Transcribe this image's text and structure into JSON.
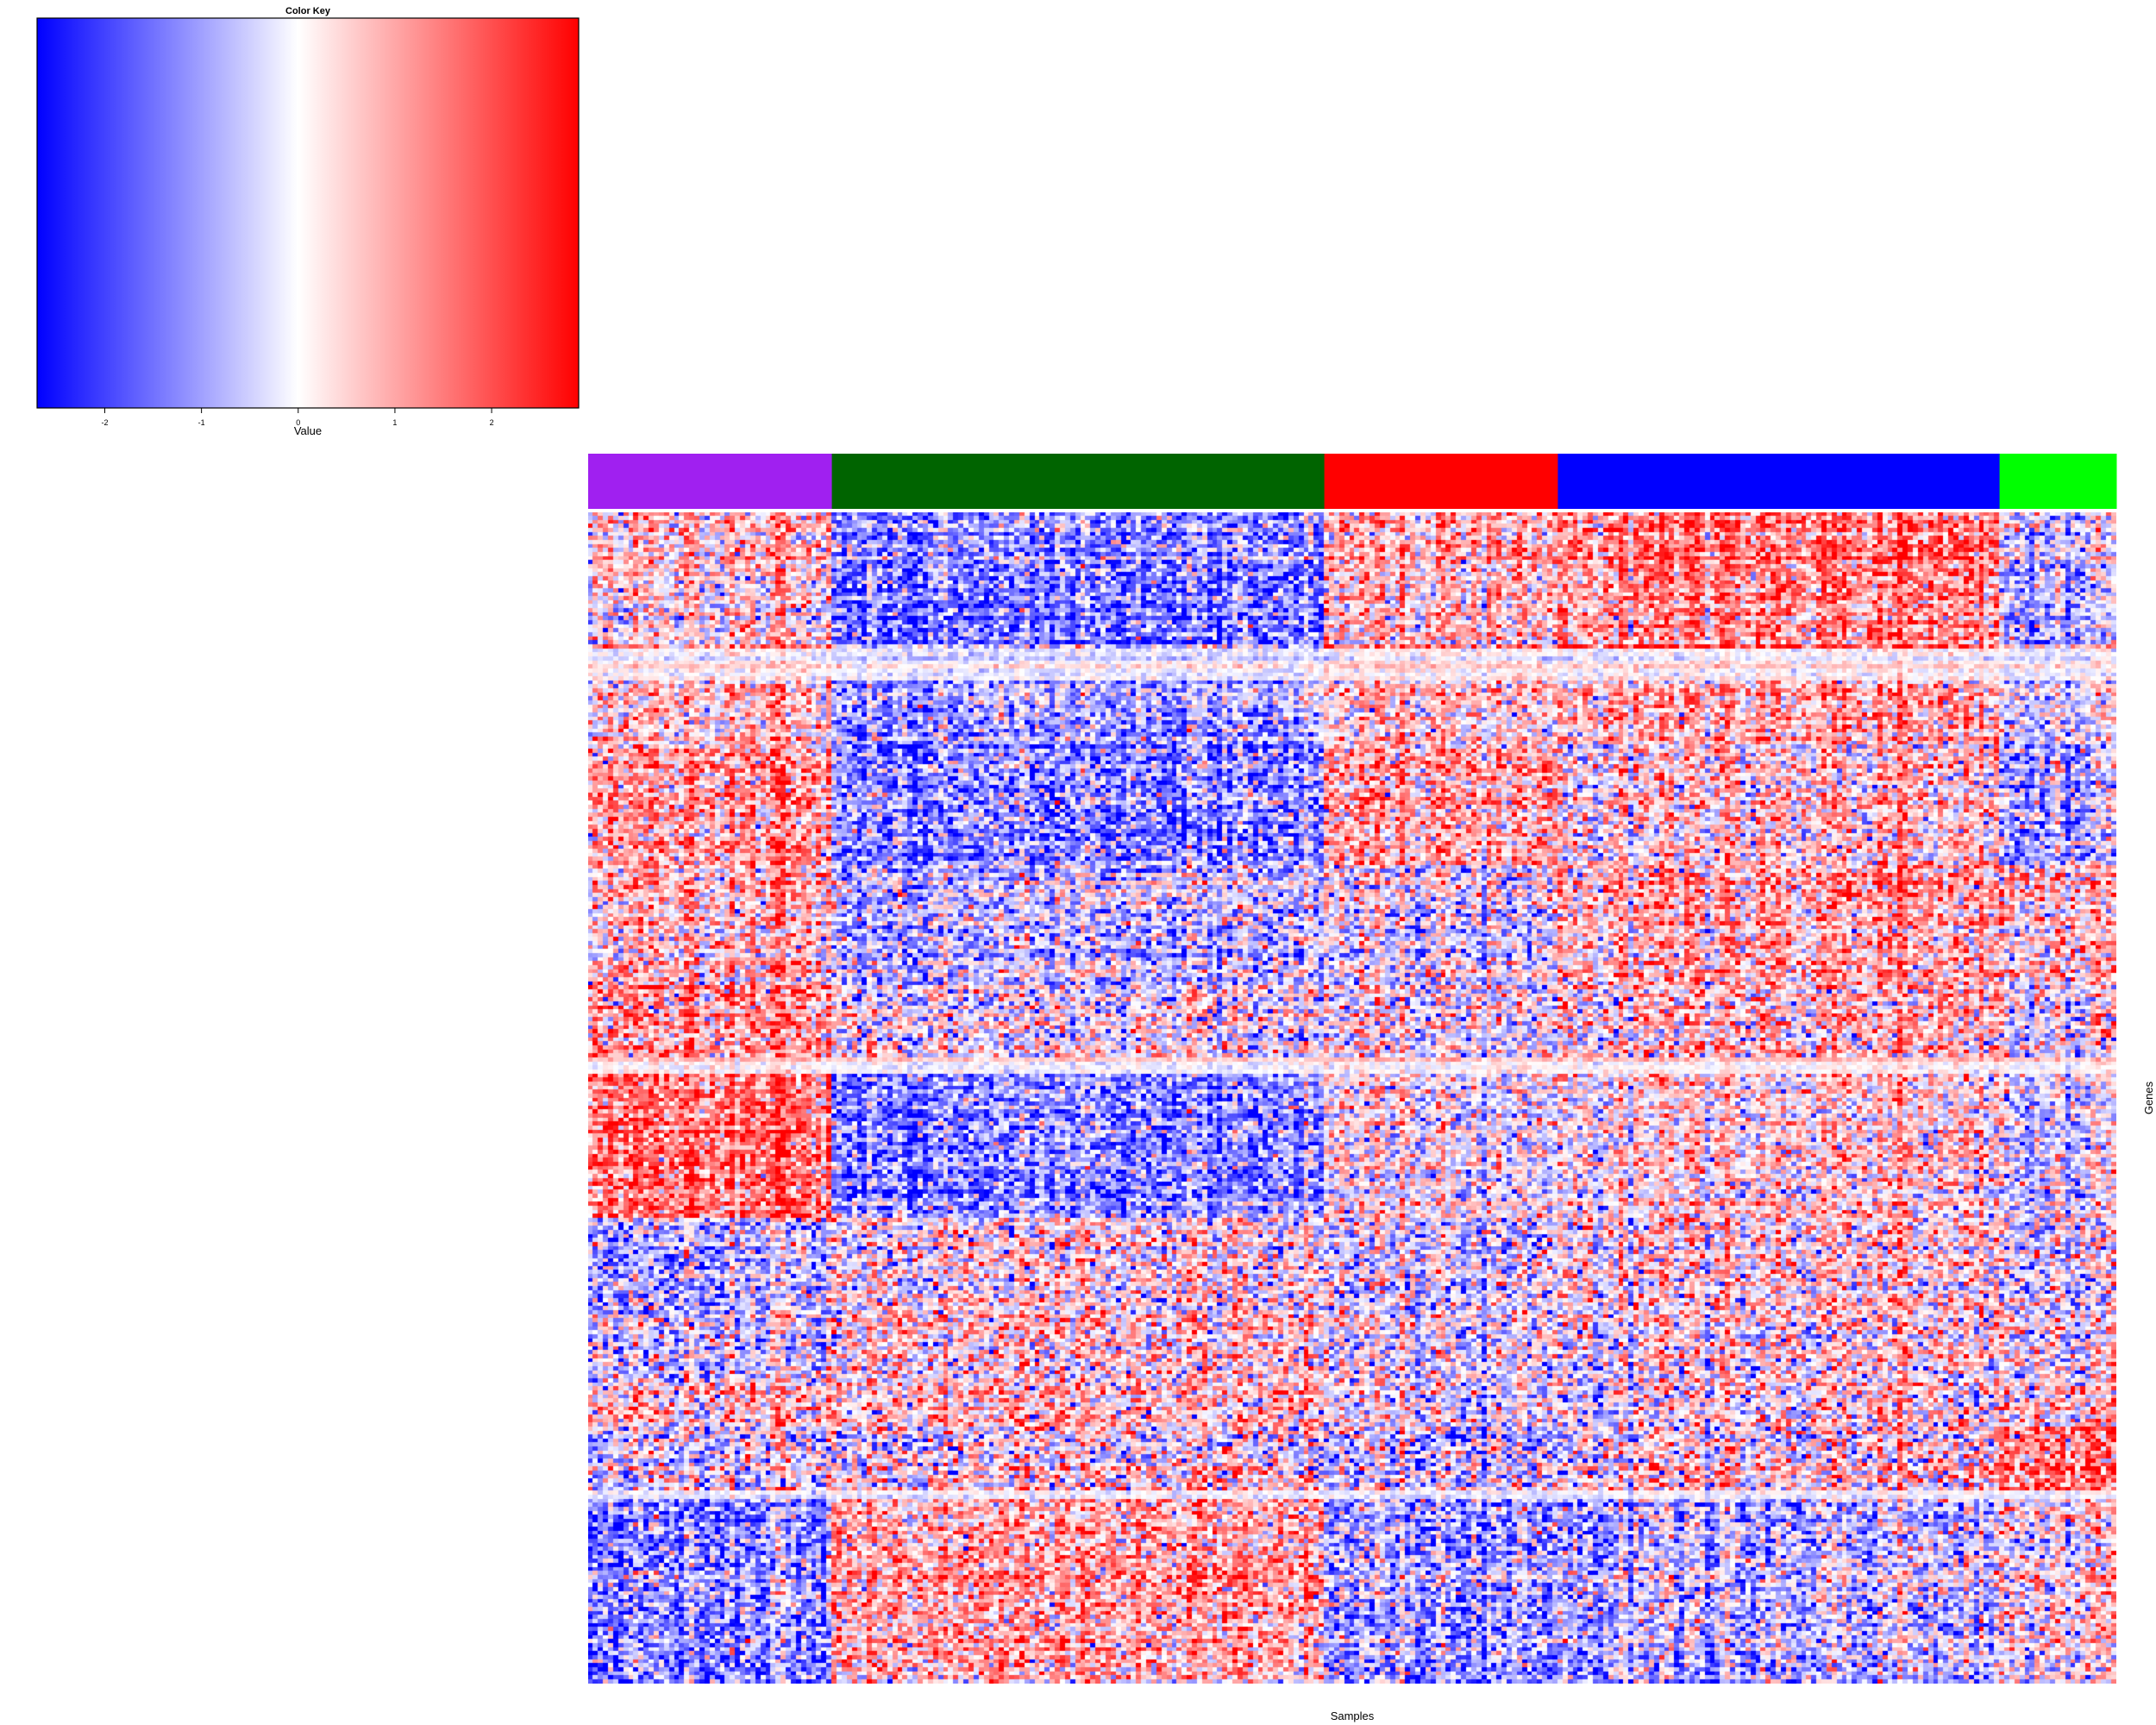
{
  "chart_data": {
    "type": "heatmap",
    "axis_labels": {
      "xlabel": "Samples",
      "ylabel": "Genes"
    },
    "color_key": {
      "title": "Color Key",
      "xlabel": "Value",
      "range": [
        -2.7,
        2.9
      ],
      "colors": [
        "#0000ff",
        "#ffffff",
        "#ff0000"
      ],
      "ticks": [
        {
          "value": -2,
          "label": "-2"
        },
        {
          "value": -1,
          "label": "-1"
        },
        {
          "value": 0,
          "label": "0"
        },
        {
          "value": 1,
          "label": "1"
        },
        {
          "value": 2,
          "label": "2"
        }
      ]
    },
    "column_groups": [
      {
        "group": 1,
        "color": "#a020f0",
        "sample_count": 48
      },
      {
        "group": 2,
        "color": "#006400",
        "sample_count": 97
      },
      {
        "group": 3,
        "color": "#ff0000",
        "sample_count": 46
      },
      {
        "group": 4,
        "color": "#0000ff",
        "sample_count": 87
      },
      {
        "group": 5,
        "color": "#00ff00",
        "sample_count": 23
      }
    ],
    "gene_blocks": [
      {
        "block": 1,
        "gene_count": 34,
        "group_means": [
          0.3,
          -1.4,
          0.7,
          1.3,
          -0.7
        ],
        "spread": 1.0
      },
      {
        "block": 2,
        "gene_count": 8,
        "group_means": [
          0.1,
          -0.2,
          0.2,
          0.1,
          -0.1
        ],
        "spread": 0.35
      },
      {
        "block": 3,
        "gene_count": 16,
        "group_means": [
          0.5,
          -0.9,
          0.6,
          0.9,
          -0.3
        ],
        "spread": 1.0
      },
      {
        "block": 4,
        "gene_count": 30,
        "group_means": [
          1.0,
          -1.3,
          1.0,
          0.4,
          -0.9
        ],
        "spread": 1.1
      },
      {
        "block": 5,
        "gene_count": 30,
        "group_means": [
          0.6,
          -0.6,
          -0.1,
          0.9,
          0.5
        ],
        "spread": 1.1
      },
      {
        "block": 6,
        "gene_count": 18,
        "group_means": [
          0.8,
          -0.3,
          -0.2,
          0.3,
          -0.4
        ],
        "spread": 1.2
      },
      {
        "block": 7,
        "gene_count": 4,
        "group_means": [
          0.1,
          -0.1,
          0.1,
          0.1,
          0.0
        ],
        "spread": 0.3
      },
      {
        "block": 8,
        "gene_count": 36,
        "group_means": [
          1.6,
          -1.2,
          0.1,
          0.4,
          -0.3
        ],
        "spread": 1.0
      },
      {
        "block": 9,
        "gene_count": 24,
        "group_means": [
          -0.8,
          0.2,
          -0.2,
          0.4,
          -0.1
        ],
        "spread": 1.2
      },
      {
        "block": 10,
        "gene_count": 18,
        "group_means": [
          -0.4,
          0.4,
          -0.1,
          0.2,
          0.2
        ],
        "spread": 1.2
      },
      {
        "block": 11,
        "gene_count": 10,
        "group_means": [
          0.4,
          0.6,
          -0.2,
          0.1,
          0.2
        ],
        "spread": 1.2
      },
      {
        "block": 12,
        "gene_count": 16,
        "group_means": [
          -0.3,
          0.2,
          -0.3,
          0.2,
          1.5
        ],
        "spread": 1.3
      },
      {
        "block": 13,
        "gene_count": 2,
        "group_means": [
          0.0,
          0.1,
          0.0,
          0.1,
          0.1
        ],
        "spread": 0.3
      },
      {
        "block": 14,
        "gene_count": 46,
        "group_means": [
          -1.3,
          0.9,
          -0.9,
          -0.6,
          0.1
        ],
        "spread": 1.1
      }
    ]
  }
}
